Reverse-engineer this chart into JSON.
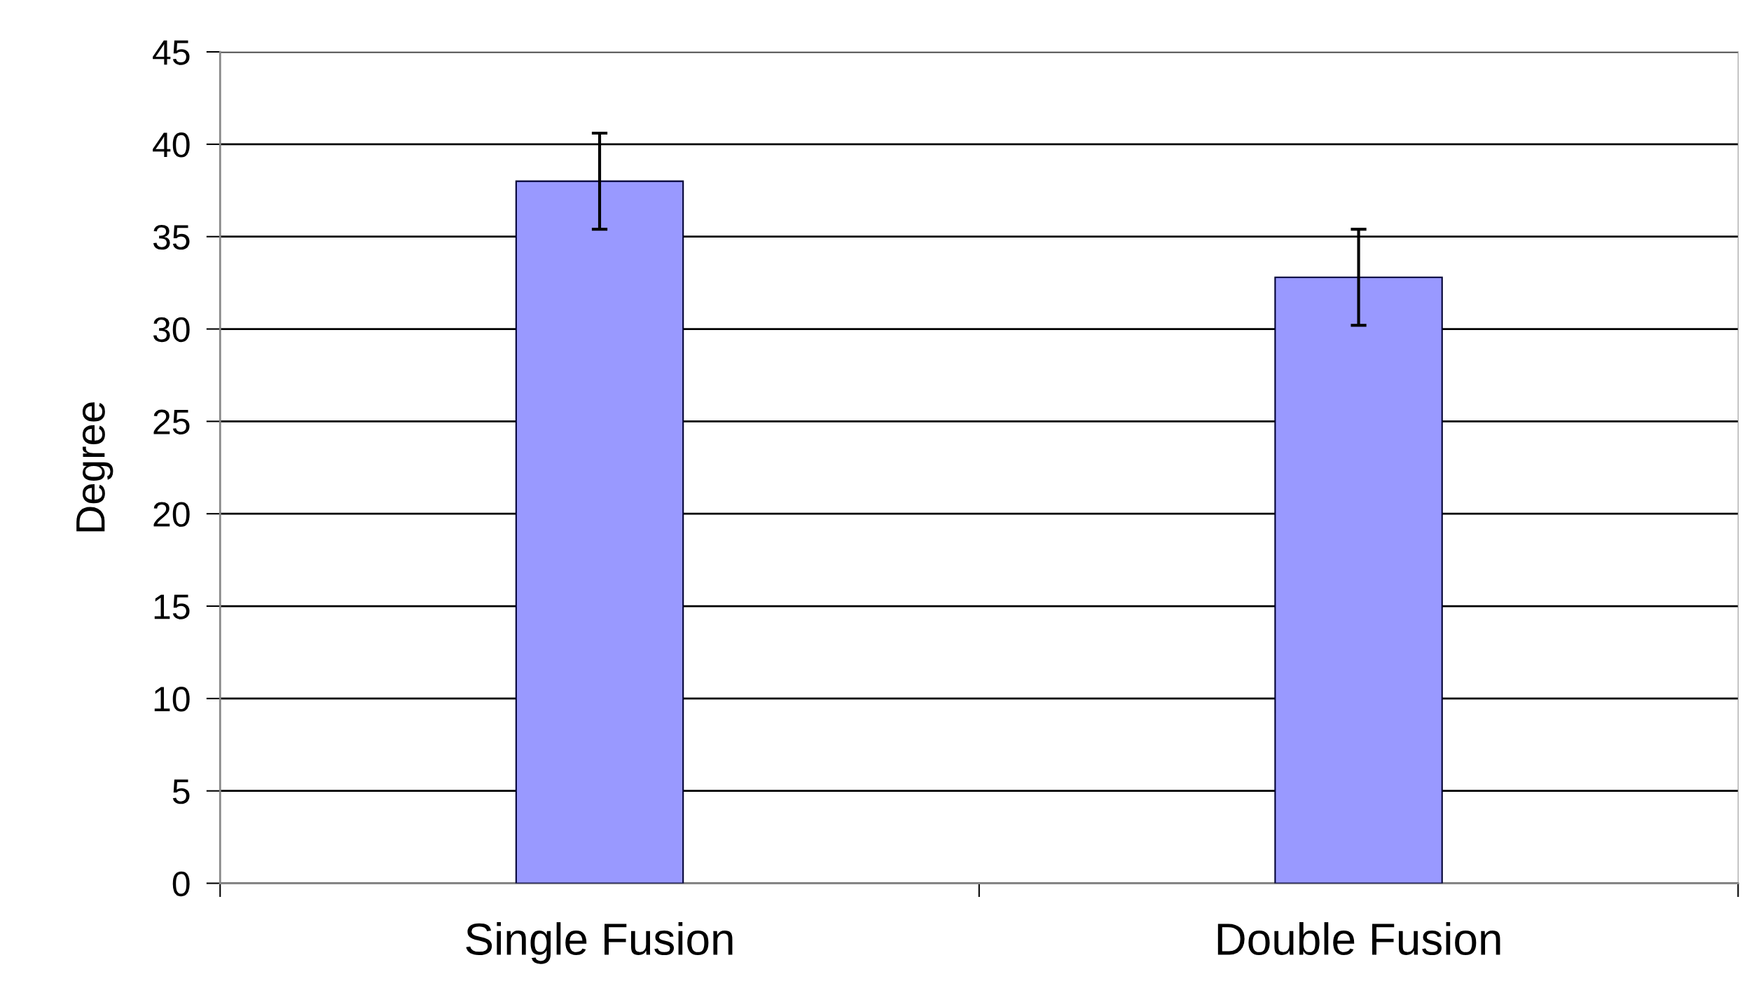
{
  "chart_data": {
    "type": "bar",
    "ylabel": "Degree",
    "categories": [
      "Single Fusion",
      "Double Fusion"
    ],
    "series": [
      {
        "color": "#9999ff",
        "values": [
          38.0,
          32.8
        ],
        "errors": [
          2.6,
          2.6
        ]
      }
    ],
    "ylim": [
      0,
      45
    ],
    "yticks": [
      0,
      5,
      10,
      15,
      20,
      25,
      30,
      35,
      40,
      45
    ],
    "grid": "y"
  }
}
